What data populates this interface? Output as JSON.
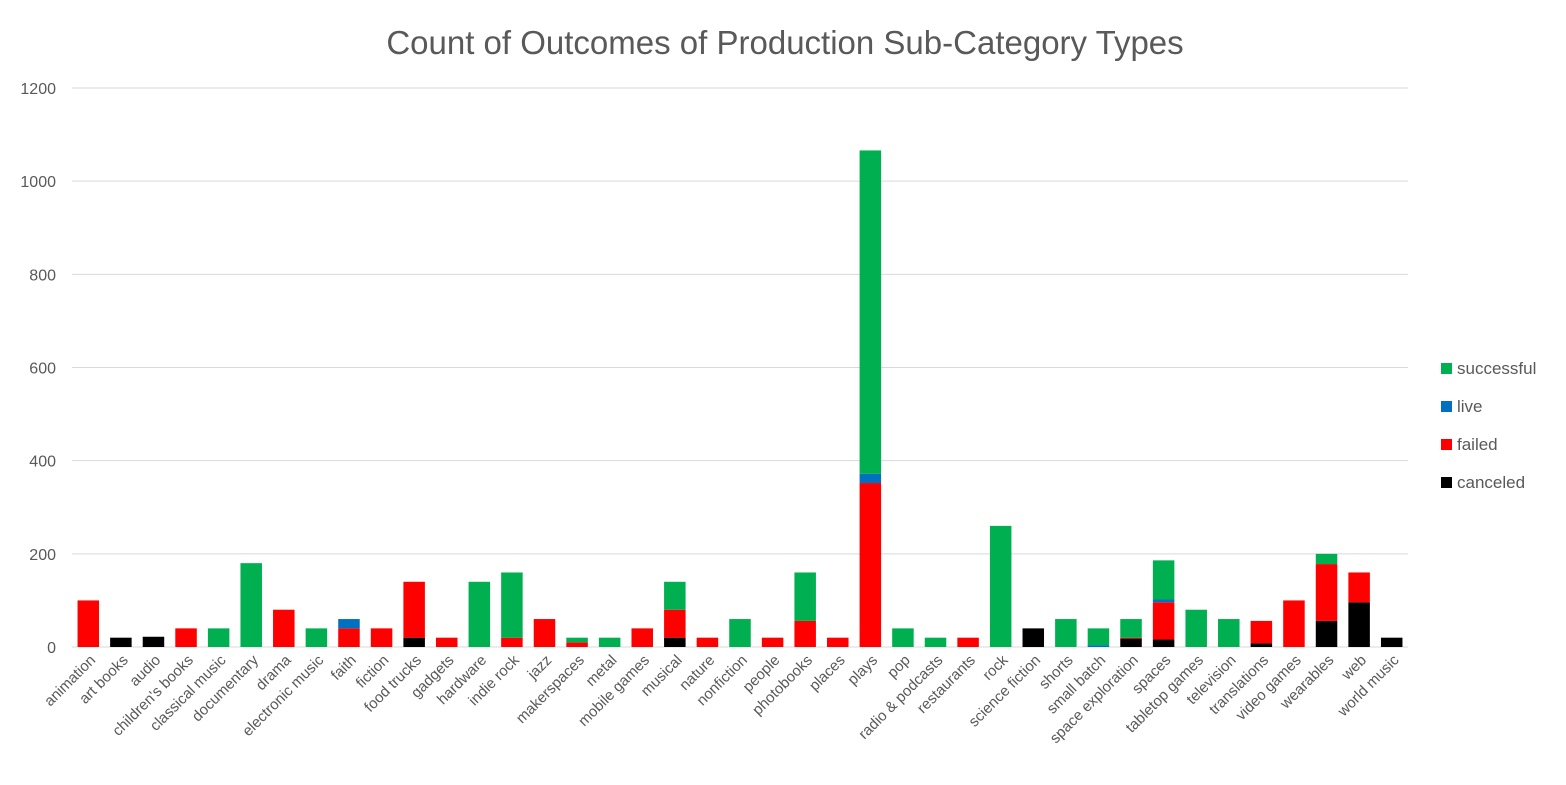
{
  "chart_data": {
    "type": "bar",
    "stacked": true,
    "title": "Count of Outcomes of Production Sub-Category Types",
    "xlabel": "",
    "ylabel": "",
    "ylim": [
      0,
      1200
    ],
    "yticks": [
      0,
      200,
      400,
      600,
      800,
      1000,
      1200
    ],
    "grid": true,
    "legend_position": "right",
    "categories": [
      "animation",
      "art books",
      "audio",
      "children's books",
      "classical music",
      "documentary",
      "drama",
      "electronic music",
      "faith",
      "fiction",
      "food trucks",
      "gadgets",
      "hardware",
      "indie rock",
      "jazz",
      "makerspaces",
      "metal",
      "mobile games",
      "musical",
      "nature",
      "nonfiction",
      "people",
      "photobooks",
      "places",
      "plays",
      "pop",
      "radio & podcasts",
      "restaurants",
      "rock",
      "science fiction",
      "shorts",
      "small batch",
      "space exploration",
      "spaces",
      "tabletop games",
      "television",
      "translations",
      "video games",
      "wearables",
      "web",
      "world music"
    ],
    "series": [
      {
        "name": "canceled",
        "color": "#000000",
        "values": [
          0,
          20,
          22,
          0,
          0,
          0,
          0,
          0,
          0,
          0,
          20,
          0,
          0,
          0,
          0,
          0,
          0,
          0,
          20,
          0,
          0,
          0,
          0,
          0,
          0,
          0,
          0,
          0,
          0,
          40,
          0,
          0,
          18,
          16,
          0,
          0,
          8,
          0,
          56,
          96,
          20
        ]
      },
      {
        "name": "failed",
        "color": "#ff0000",
        "values": [
          100,
          0,
          0,
          40,
          0,
          0,
          80,
          0,
          40,
          40,
          120,
          20,
          0,
          20,
          60,
          10,
          0,
          40,
          60,
          20,
          0,
          20,
          56,
          20,
          352,
          0,
          0,
          20,
          0,
          0,
          0,
          0,
          2,
          80,
          0,
          0,
          48,
          100,
          122,
          64,
          0
        ]
      },
      {
        "name": "live",
        "color": "#0070c0",
        "values": [
          0,
          0,
          0,
          0,
          0,
          0,
          0,
          0,
          20,
          0,
          0,
          0,
          0,
          0,
          0,
          0,
          0,
          0,
          0,
          0,
          0,
          0,
          0,
          0,
          20,
          0,
          0,
          0,
          0,
          0,
          0,
          4,
          0,
          6,
          0,
          0,
          0,
          0,
          0,
          0,
          0
        ]
      },
      {
        "name": "successful",
        "color": "#00b050",
        "values": [
          0,
          0,
          0,
          0,
          40,
          180,
          0,
          40,
          0,
          0,
          0,
          0,
          140,
          140,
          0,
          10,
          20,
          0,
          60,
          0,
          60,
          0,
          104,
          0,
          694,
          40,
          20,
          0,
          260,
          0,
          60,
          36,
          40,
          84,
          80,
          60,
          0,
          0,
          22,
          0,
          0
        ]
      }
    ],
    "legend_order": [
      "successful",
      "live",
      "failed",
      "canceled"
    ]
  }
}
